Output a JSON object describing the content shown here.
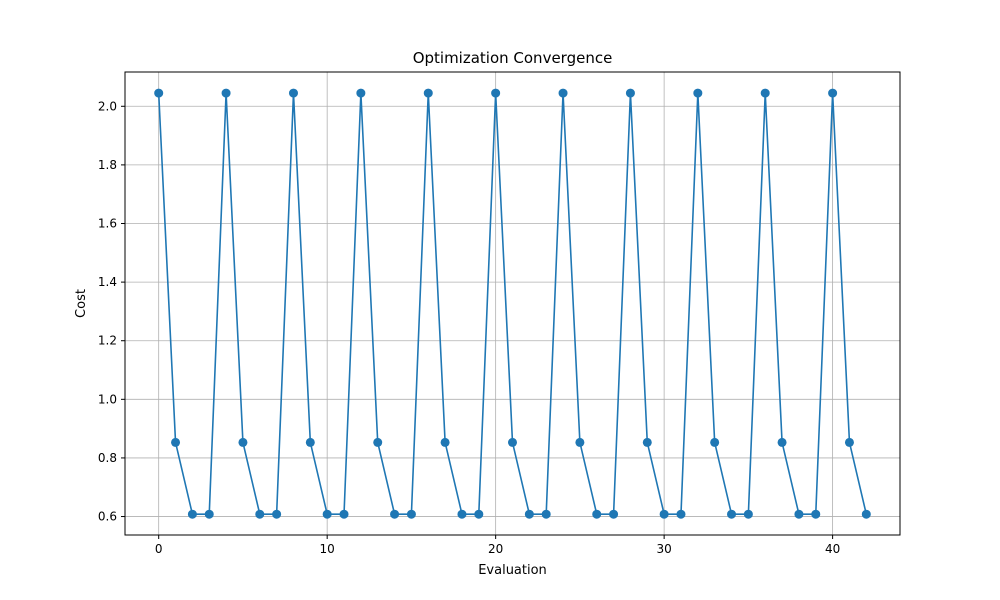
{
  "chart_data": {
    "type": "line",
    "title": "Optimization Convergence",
    "xlabel": "Evaluation",
    "ylabel": "Cost",
    "xlim": [
      -2,
      44
    ],
    "ylim": [
      0.537,
      2.117
    ],
    "xticks": [
      0,
      10,
      20,
      30,
      40
    ],
    "yticks": [
      0.6,
      0.8,
      1.0,
      1.2,
      1.4,
      1.6,
      1.8,
      2.0
    ],
    "xtick_labels": [
      "0",
      "10",
      "20",
      "30",
      "40"
    ],
    "ytick_labels": [
      "0.6",
      "0.8",
      "1.0",
      "1.2",
      "1.4",
      "1.6",
      "1.8",
      "2.0"
    ],
    "grid": true,
    "color": "#1f77b4",
    "marker": "circle",
    "series": [
      {
        "x": [
          0,
          1,
          2,
          3,
          4,
          5,
          6,
          7,
          8,
          9,
          10,
          11,
          12,
          13,
          14,
          15,
          16,
          17,
          18,
          19,
          20,
          21,
          22,
          23,
          24,
          25,
          26,
          27,
          28,
          29,
          30,
          31,
          32,
          33,
          34,
          35,
          36,
          37,
          38,
          39,
          40,
          41,
          42
        ],
        "values": [
          2.045,
          0.853,
          0.608,
          0.608,
          2.045,
          0.853,
          0.608,
          0.608,
          2.045,
          0.853,
          0.608,
          0.608,
          2.045,
          0.853,
          0.608,
          0.608,
          2.045,
          0.853,
          0.608,
          0.608,
          2.045,
          0.853,
          0.608,
          0.608,
          2.045,
          0.853,
          0.608,
          0.608,
          2.045,
          0.853,
          0.608,
          0.608,
          2.045,
          0.853,
          0.608,
          0.608,
          2.045,
          0.853,
          0.608,
          0.608,
          2.045,
          0.853,
          0.608
        ]
      }
    ]
  }
}
